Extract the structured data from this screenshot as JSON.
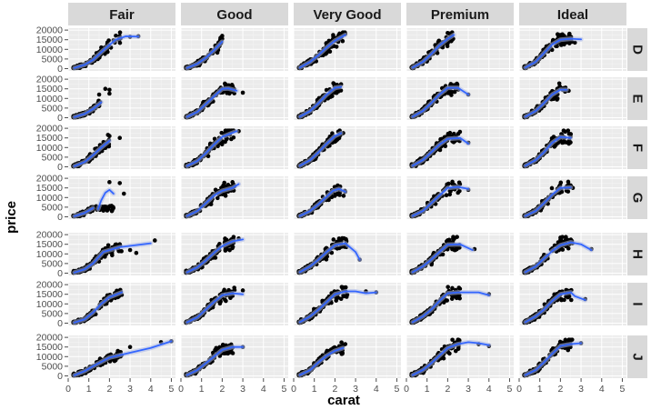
{
  "chart_data": {
    "type": "scatter",
    "facet_cols": [
      "Fair",
      "Good",
      "Very Good",
      "Premium",
      "Ideal"
    ],
    "facet_rows": [
      "D",
      "E",
      "F",
      "G",
      "H",
      "I",
      "J"
    ],
    "xlabel": "carat",
    "ylabel": "price",
    "xlim": [
      0,
      5.2
    ],
    "ylim": [
      -1200,
      21000
    ],
    "x_ticks": [
      0,
      1,
      2,
      3,
      4,
      5
    ],
    "y_ticks": [
      0,
      5000,
      10000,
      15000,
      20000
    ],
    "y_tick_labels": [
      "0",
      "5000",
      "10000",
      "15000",
      "20000"
    ],
    "colors": {
      "panel_bg": "#ebebeb",
      "grid_major": "#ffffff",
      "grid_minor": "#f5f5f5",
      "strip_bg": "#d9d9d9",
      "points": "#000000",
      "smooth": "#3366ff",
      "band": "#aab7e6"
    },
    "smooth_curves": [
      [
        [
          [
            0.3,
            300
          ],
          [
            0.8,
            2000
          ],
          [
            1.2,
            4500
          ],
          [
            1.7,
            9500
          ],
          [
            2.3,
            15000
          ],
          [
            2.8,
            16800
          ],
          [
            3.4,
            16600
          ]
        ]
      ],
      [
        [
          [
            0.3,
            300
          ],
          [
            0.8,
            2500
          ],
          [
            1.2,
            5500
          ],
          [
            1.6,
            9500
          ],
          [
            2.0,
            14000
          ]
        ]
      ],
      [
        [
          [
            0.3,
            500
          ],
          [
            0.8,
            3500
          ],
          [
            1.2,
            7000
          ],
          [
            1.6,
            11000
          ],
          [
            2.0,
            14500
          ],
          [
            2.5,
            17500
          ]
        ]
      ],
      [
        [
          [
            0.3,
            500
          ],
          [
            0.8,
            3500
          ],
          [
            1.2,
            7500
          ],
          [
            1.6,
            12000
          ],
          [
            2.0,
            15500
          ],
          [
            2.3,
            17500
          ]
        ]
      ],
      [
        [
          [
            0.3,
            500
          ],
          [
            0.8,
            3500
          ],
          [
            1.2,
            8000
          ],
          [
            1.6,
            12500
          ],
          [
            2.0,
            15000
          ],
          [
            2.5,
            15500
          ],
          [
            3.0,
            15200
          ]
        ]
      ],
      [
        [
          [
            0.3,
            300
          ],
          [
            0.8,
            2000
          ],
          [
            1.2,
            4500
          ],
          [
            1.6,
            8000
          ]
        ]
      ],
      [
        [
          [
            0.3,
            400
          ],
          [
            0.8,
            3000
          ],
          [
            1.2,
            7000
          ],
          [
            1.7,
            12000
          ],
          [
            2.0,
            15000
          ],
          [
            2.3,
            15200
          ],
          [
            2.7,
            14000
          ]
        ]
      ],
      [
        [
          [
            0.3,
            500
          ],
          [
            0.8,
            3500
          ],
          [
            1.2,
            7500
          ],
          [
            1.6,
            12000
          ],
          [
            2.0,
            15500
          ],
          [
            2.3,
            16000
          ]
        ]
      ],
      [
        [
          [
            0.3,
            500
          ],
          [
            0.8,
            3500
          ],
          [
            1.2,
            7500
          ],
          [
            1.6,
            12000
          ],
          [
            2.0,
            15500
          ],
          [
            2.5,
            15500
          ],
          [
            3.0,
            12000
          ]
        ]
      ],
      [
        [
          [
            0.3,
            500
          ],
          [
            0.8,
            3500
          ],
          [
            1.2,
            7500
          ],
          [
            1.6,
            12000
          ],
          [
            2.0,
            14500
          ],
          [
            2.3,
            14500
          ]
        ]
      ],
      [
        [
          [
            0.3,
            300
          ],
          [
            0.8,
            2500
          ],
          [
            1.2,
            6000
          ],
          [
            1.6,
            10000
          ],
          [
            2.0,
            13500
          ]
        ]
      ],
      [
        [
          [
            0.3,
            400
          ],
          [
            0.8,
            3000
          ],
          [
            1.2,
            7000
          ],
          [
            1.6,
            11500
          ],
          [
            2.0,
            15500
          ],
          [
            2.7,
            18500
          ]
        ]
      ],
      [
        [
          [
            0.3,
            500
          ],
          [
            0.8,
            3500
          ],
          [
            1.2,
            7500
          ],
          [
            1.6,
            12000
          ],
          [
            2.0,
            16000
          ],
          [
            2.3,
            17500
          ]
        ]
      ],
      [
        [
          [
            0.3,
            500
          ],
          [
            0.8,
            3500
          ],
          [
            1.2,
            7500
          ],
          [
            1.6,
            11500
          ],
          [
            2.0,
            14500
          ],
          [
            2.6,
            15000
          ],
          [
            3.0,
            12000
          ]
        ]
      ],
      [
        [
          [
            0.3,
            500
          ],
          [
            0.8,
            3500
          ],
          [
            1.2,
            7500
          ],
          [
            1.6,
            12500
          ],
          [
            2.0,
            15500
          ],
          [
            2.5,
            15000
          ]
        ]
      ],
      [
        [
          [
            0.3,
            300
          ],
          [
            0.8,
            2000
          ],
          [
            1.2,
            4500
          ]
        ],
        [
          [
            1.45,
            4000
          ],
          [
            1.6,
            8500
          ],
          [
            1.8,
            12500
          ],
          [
            2.0,
            14000
          ],
          [
            2.2,
            12000
          ]
        ]
      ],
      [
        [
          [
            0.3,
            400
          ],
          [
            0.8,
            3000
          ],
          [
            1.2,
            7000
          ],
          [
            1.6,
            11000
          ],
          [
            2.0,
            13500
          ],
          [
            2.5,
            15000
          ],
          [
            2.8,
            17000
          ]
        ]
      ],
      [
        [
          [
            0.3,
            400
          ],
          [
            0.8,
            3000
          ],
          [
            1.2,
            6500
          ],
          [
            1.6,
            10500
          ],
          [
            1.9,
            13500
          ],
          [
            2.2,
            14500
          ],
          [
            2.5,
            13000
          ]
        ]
      ],
      [
        [
          [
            0.3,
            400
          ],
          [
            0.8,
            3000
          ],
          [
            1.2,
            7000
          ],
          [
            1.6,
            11000
          ],
          [
            2.0,
            15000
          ],
          [
            2.5,
            15500
          ],
          [
            3.0,
            14500
          ]
        ]
      ],
      [
        [
          [
            0.3,
            400
          ],
          [
            0.8,
            3000
          ],
          [
            1.2,
            7000
          ],
          [
            1.6,
            11500
          ],
          [
            2.0,
            15000
          ],
          [
            2.5,
            15200
          ]
        ]
      ],
      [
        [
          [
            0.3,
            300
          ],
          [
            0.8,
            2000
          ],
          [
            1.2,
            5000
          ],
          [
            1.7,
            11000
          ],
          [
            2.5,
            13500
          ],
          [
            4.0,
            15500
          ]
        ]
      ],
      [
        [
          [
            0.3,
            400
          ],
          [
            0.8,
            3000
          ],
          [
            1.2,
            6500
          ],
          [
            1.6,
            10500
          ],
          [
            2.0,
            14000
          ],
          [
            2.5,
            16500
          ],
          [
            3.0,
            17500
          ]
        ]
      ],
      [
        [
          [
            0.3,
            500
          ],
          [
            0.8,
            3500
          ],
          [
            1.2,
            7000
          ],
          [
            1.6,
            11000
          ],
          [
            2.0,
            14500
          ],
          [
            2.5,
            15500
          ],
          [
            3.0,
            11000
          ],
          [
            3.2,
            7000
          ]
        ]
      ],
      [
        [
          [
            0.3,
            500
          ],
          [
            0.8,
            3500
          ],
          [
            1.2,
            7000
          ],
          [
            1.6,
            11000
          ],
          [
            2.0,
            14800
          ],
          [
            2.6,
            15000
          ],
          [
            3.0,
            13000
          ],
          [
            3.2,
            12000
          ]
        ]
      ],
      [
        [
          [
            0.3,
            500
          ],
          [
            0.8,
            3500
          ],
          [
            1.2,
            7500
          ],
          [
            1.6,
            11500
          ],
          [
            2.0,
            14500
          ],
          [
            2.5,
            16000
          ],
          [
            3.0,
            15000
          ],
          [
            3.5,
            12000
          ]
        ]
      ],
      [
        [
          [
            0.3,
            300
          ],
          [
            0.8,
            2000
          ],
          [
            1.2,
            5500
          ],
          [
            1.6,
            10000
          ],
          [
            2.0,
            13500
          ],
          [
            2.6,
            16000
          ]
        ]
      ],
      [
        [
          [
            0.3,
            400
          ],
          [
            0.8,
            3000
          ],
          [
            1.2,
            7000
          ],
          [
            1.6,
            11000
          ],
          [
            2.0,
            14500
          ],
          [
            2.5,
            15500
          ],
          [
            3.0,
            15000
          ]
        ]
      ],
      [
        [
          [
            0.3,
            500
          ],
          [
            0.8,
            3500
          ],
          [
            1.2,
            7000
          ],
          [
            1.6,
            11000
          ],
          [
            2.0,
            15000
          ],
          [
            2.5,
            16500
          ],
          [
            3.0,
            16500
          ],
          [
            3.5,
            15500
          ],
          [
            4.0,
            16000
          ]
        ]
      ],
      [
        [
          [
            0.3,
            500
          ],
          [
            0.8,
            3500
          ],
          [
            1.2,
            7000
          ],
          [
            1.6,
            11500
          ],
          [
            2.0,
            15500
          ],
          [
            2.5,
            16000
          ],
          [
            3.0,
            16000
          ],
          [
            3.5,
            16000
          ],
          [
            4.0,
            14500
          ]
        ]
      ],
      [
        [
          [
            0.3,
            500
          ],
          [
            0.8,
            3500
          ],
          [
            1.2,
            7000
          ],
          [
            1.6,
            11500
          ],
          [
            2.0,
            15000
          ],
          [
            2.5,
            16000
          ],
          [
            2.7,
            14000
          ],
          [
            3.2,
            12000
          ]
        ]
      ],
      [
        [
          [
            0.3,
            300
          ],
          [
            0.8,
            2500
          ],
          [
            1.2,
            5000
          ],
          [
            2.0,
            9500
          ],
          [
            3.0,
            12000
          ],
          [
            4.0,
            14500
          ],
          [
            5.0,
            18000
          ]
        ]
      ],
      [
        [
          [
            0.3,
            400
          ],
          [
            0.8,
            3000
          ],
          [
            1.2,
            6500
          ],
          [
            1.6,
            10000
          ],
          [
            2.0,
            13500
          ],
          [
            2.5,
            15000
          ],
          [
            3.0,
            15000
          ]
        ]
      ],
      [
        [
          [
            0.3,
            400
          ],
          [
            0.8,
            3000
          ],
          [
            1.2,
            7000
          ],
          [
            1.6,
            10500
          ],
          [
            2.0,
            13000
          ],
          [
            2.4,
            14500
          ]
        ]
      ],
      [
        [
          [
            0.3,
            400
          ],
          [
            0.8,
            3000
          ],
          [
            1.2,
            6500
          ],
          [
            1.6,
            10500
          ],
          [
            2.0,
            14500
          ],
          [
            2.5,
            16500
          ],
          [
            3.0,
            17500
          ],
          [
            3.5,
            17000
          ],
          [
            4.0,
            16000
          ]
        ]
      ],
      [
        [
          [
            0.3,
            400
          ],
          [
            0.8,
            3000
          ],
          [
            1.2,
            7000
          ],
          [
            1.6,
            11500
          ],
          [
            2.0,
            15500
          ],
          [
            2.5,
            16500
          ],
          [
            3.0,
            17000
          ]
        ]
      ]
    ],
    "outliers": [
      [
        [
          3.0,
          16500
        ],
        [
          3.4,
          16800
        ]
      ],
      [
        [
          2.0,
          17000
        ],
        [
          2.0,
          15500
        ]
      ],
      [
        [
          2.5,
          18000
        ]
      ],
      [
        [
          2.0,
          18500
        ]
      ],
      [
        [
          2.5,
          16000
        ],
        [
          2.7,
          13500
        ]
      ],
      [
        [
          1.5,
          12000
        ],
        [
          1.8,
          15000
        ],
        [
          2.0,
          14500
        ],
        [
          2.0,
          12500
        ]
      ],
      [
        [
          3.0,
          13000
        ]
      ],
      [
        [
          1.6,
          11000
        ],
        [
          2.0,
          13000
        ]
      ],
      [
        [
          3.0,
          12000
        ]
      ],
      [
        [
          2.4,
          14000
        ]
      ],
      [
        [
          2.5,
          15000
        ],
        [
          2.0,
          16000
        ],
        [
          1.6,
          9500
        ]
      ],
      [
        [
          2.8,
          18500
        ]
      ],
      [
        [
          2.4,
          17500
        ]
      ],
      [
        [
          3.0,
          12500
        ]
      ],
      [
        [
          2.5,
          17000
        ]
      ],
      [
        [
          2.0,
          18000
        ],
        [
          2.5,
          17500
        ],
        [
          2.7,
          12000
        ]
      ],
      [
        [
          2.5,
          18000
        ],
        [
          2.6,
          16000
        ]
      ],
      [
        [
          2.5,
          13000
        ]
      ],
      [
        [
          2.5,
          12500
        ],
        [
          3.0,
          14000
        ]
      ],
      [
        [
          2.6,
          15000
        ]
      ],
      [
        [
          4.2,
          17000
        ],
        [
          2.5,
          15000
        ],
        [
          3.0,
          12000
        ],
        [
          3.3,
          10500
        ]
      ],
      [
        [
          2.8,
          18000
        ]
      ],
      [
        [
          3.2,
          7000
        ]
      ],
      [
        [
          3.3,
          12500
        ]
      ],
      [
        [
          3.5,
          12500
        ]
      ],
      [
        [
          2.5,
          16000
        ]
      ],
      [
        [
          3.0,
          17000
        ]
      ],
      [
        [
          3.5,
          16500
        ],
        [
          4.0,
          16000
        ]
      ],
      [
        [
          4.0,
          15000
        ]
      ],
      [
        [
          3.2,
          12500
        ]
      ],
      [
        [
          5.0,
          18000
        ],
        [
          4.5,
          17500
        ],
        [
          3.0,
          15000
        ]
      ],
      [
        [
          3.0,
          15000
        ]
      ],
      [
        [
          2.5,
          16500
        ]
      ],
      [
        [
          4.0,
          15500
        ],
        [
          3.5,
          16500
        ]
      ],
      [
        [
          3.0,
          17000
        ]
      ]
    ]
  }
}
